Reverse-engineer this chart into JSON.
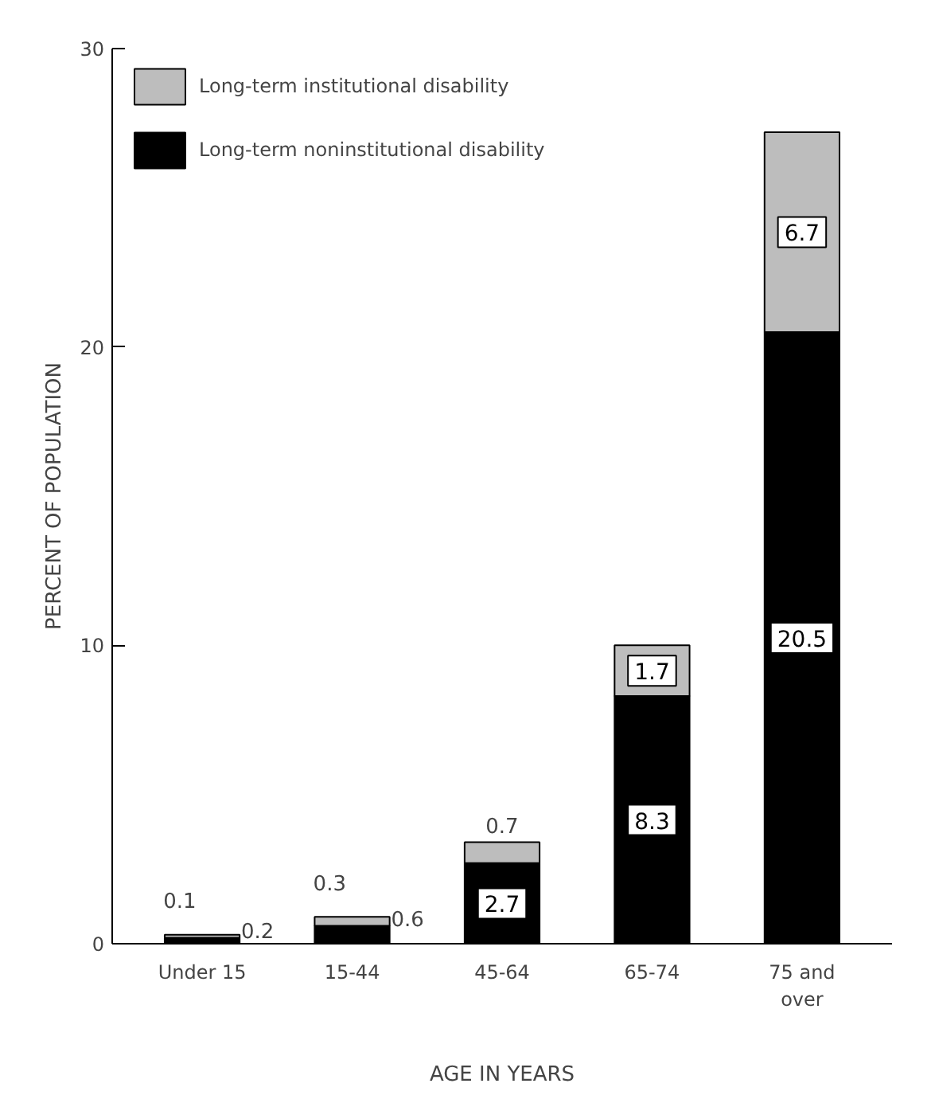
{
  "chart_data": {
    "type": "bar",
    "stacked": true,
    "xlabel": "AGE IN YEARS",
    "ylabel": "PERCENT OF POPULATION",
    "categories": [
      "Under 15",
      "15-44",
      "45-64",
      "65-74",
      "75 and\nover"
    ],
    "series": [
      {
        "name": "Long-term noninstitutional disability",
        "color": "#000000",
        "values": [
          0.2,
          0.6,
          2.7,
          8.3,
          20.5
        ]
      },
      {
        "name": "Long-term institutional disability",
        "color": "#bdbdbd",
        "values": [
          0.1,
          0.3,
          0.7,
          1.7,
          6.7
        ]
      }
    ],
    "ylim": [
      0,
      30
    ],
    "yticks": [
      0,
      10,
      20,
      30
    ],
    "data_labels": true,
    "legend": "top left",
    "grid": false
  }
}
